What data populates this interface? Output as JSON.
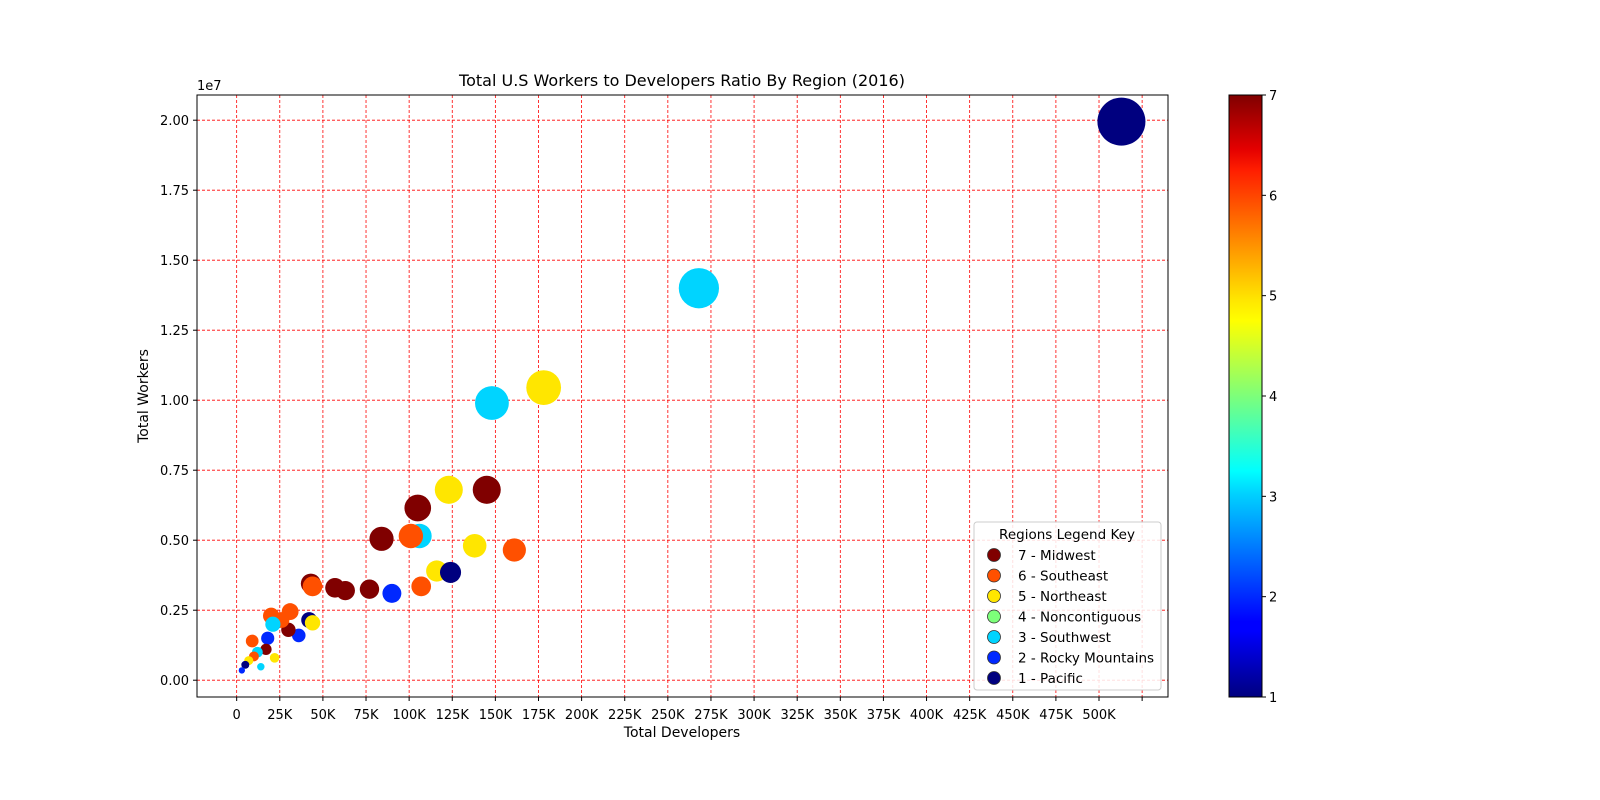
{
  "chart_data": {
    "type": "scatter",
    "title": "Total U.S Workers to Developers Ratio By Region (2016)",
    "xlabel": "Total Developers",
    "ylabel": "Total Workers",
    "y_offset_label": "1e7",
    "xlim": [
      -23000,
      540000
    ],
    "ylim": [
      -0.06,
      2.09
    ],
    "x_ticks": [
      {
        "value": 0,
        "label": "0"
      },
      {
        "value": 25000,
        "label": "25K"
      },
      {
        "value": 50000,
        "label": "50K"
      },
      {
        "value": 75000,
        "label": "75K"
      },
      {
        "value": 100000,
        "label": "100K"
      },
      {
        "value": 125000,
        "label": "125K"
      },
      {
        "value": 150000,
        "label": "150K"
      },
      {
        "value": 175000,
        "label": "175K"
      },
      {
        "value": 200000,
        "label": "200K"
      },
      {
        "value": 225000,
        "label": "225K"
      },
      {
        "value": 250000,
        "label": "250K"
      },
      {
        "value": 275000,
        "label": "275K"
      },
      {
        "value": 300000,
        "label": "300K"
      },
      {
        "value": 325000,
        "label": "325K"
      },
      {
        "value": 350000,
        "label": "350K"
      },
      {
        "value": 375000,
        "label": "375K"
      },
      {
        "value": 400000,
        "label": "400K"
      },
      {
        "value": 425000,
        "label": "425K"
      },
      {
        "value": 450000,
        "label": "450K"
      },
      {
        "value": 475000,
        "label": "475K"
      },
      {
        "value": 500000,
        "label": "500K"
      },
      {
        "value": 525000,
        "label": ""
      }
    ],
    "y_ticks": [
      {
        "value": 0.0,
        "label": "0.00"
      },
      {
        "value": 0.25,
        "label": "0.25"
      },
      {
        "value": 0.5,
        "label": "0.50"
      },
      {
        "value": 0.75,
        "label": "0.75"
      },
      {
        "value": 1.0,
        "label": "1.00"
      },
      {
        "value": 1.25,
        "label": "1.25"
      },
      {
        "value": 1.5,
        "label": "1.50"
      },
      {
        "value": 1.75,
        "label": "1.75"
      },
      {
        "value": 2.0,
        "label": "2.00"
      }
    ],
    "grid": true,
    "grid_color": "#ff0000",
    "colormap": "jet",
    "colorbar": {
      "min": 1,
      "max": 7,
      "ticks": [
        "1",
        "2",
        "3",
        "4",
        "5",
        "6",
        "7"
      ]
    },
    "legend": {
      "title": "Regions Legend Key",
      "location": "lower-right",
      "entries": [
        {
          "label": "7 - Midwest",
          "color": "#800000"
        },
        {
          "label": "6 - Southeast",
          "color": "#ff5000"
        },
        {
          "label": "5 - Northeast",
          "color": "#ffe600"
        },
        {
          "label": "4 - Noncontiguous",
          "color": "#7dff7a"
        },
        {
          "label": "3 - Southwest",
          "color": "#00d4ff"
        },
        {
          "label": "2 - Rocky Mountains",
          "color": "#0028ff"
        },
        {
          "label": "1 - Pacific",
          "color": "#00007f"
        }
      ]
    },
    "points": [
      {
        "x": 513000,
        "y": 1.995,
        "region": 1
      },
      {
        "x": 268000,
        "y": 1.4,
        "region": 3
      },
      {
        "x": 178000,
        "y": 1.045,
        "region": 5
      },
      {
        "x": 148000,
        "y": 0.99,
        "region": 3
      },
      {
        "x": 145000,
        "y": 0.68,
        "region": 7
      },
      {
        "x": 123000,
        "y": 0.68,
        "region": 5
      },
      {
        "x": 105000,
        "y": 0.615,
        "region": 7
      },
      {
        "x": 161000,
        "y": 0.465,
        "region": 6
      },
      {
        "x": 138000,
        "y": 0.48,
        "region": 5
      },
      {
        "x": 106000,
        "y": 0.515,
        "region": 3
      },
      {
        "x": 101000,
        "y": 0.515,
        "region": 6
      },
      {
        "x": 84000,
        "y": 0.505,
        "region": 7
      },
      {
        "x": 116000,
        "y": 0.39,
        "region": 5
      },
      {
        "x": 124000,
        "y": 0.385,
        "region": 1
      },
      {
        "x": 107000,
        "y": 0.335,
        "region": 6
      },
      {
        "x": 90000,
        "y": 0.31,
        "region": 2
      },
      {
        "x": 77000,
        "y": 0.325,
        "region": 7
      },
      {
        "x": 63000,
        "y": 0.32,
        "region": 7
      },
      {
        "x": 57000,
        "y": 0.33,
        "region": 7
      },
      {
        "x": 43000,
        "y": 0.345,
        "region": 7
      },
      {
        "x": 44000,
        "y": 0.335,
        "region": 6
      },
      {
        "x": 42000,
        "y": 0.215,
        "region": 1
      },
      {
        "x": 44000,
        "y": 0.205,
        "region": 5
      },
      {
        "x": 36000,
        "y": 0.16,
        "region": 2
      },
      {
        "x": 31000,
        "y": 0.245,
        "region": 6
      },
      {
        "x": 30000,
        "y": 0.18,
        "region": 7
      },
      {
        "x": 26000,
        "y": 0.215,
        "region": 6
      },
      {
        "x": 20000,
        "y": 0.23,
        "region": 6
      },
      {
        "x": 21000,
        "y": 0.2,
        "region": 3
      },
      {
        "x": 18000,
        "y": 0.15,
        "region": 2
      },
      {
        "x": 9000,
        "y": 0.14,
        "region": 6
      },
      {
        "x": 17000,
        "y": 0.11,
        "region": 7
      },
      {
        "x": 12000,
        "y": 0.1,
        "region": 3
      },
      {
        "x": 10000,
        "y": 0.085,
        "region": 6
      },
      {
        "x": 22000,
        "y": 0.08,
        "region": 5
      },
      {
        "x": 7000,
        "y": 0.07,
        "region": 5
      },
      {
        "x": 14000,
        "y": 0.048,
        "region": 3
      },
      {
        "x": 5000,
        "y": 0.055,
        "region": 1
      },
      {
        "x": 3000,
        "y": 0.035,
        "region": 2
      }
    ]
  }
}
